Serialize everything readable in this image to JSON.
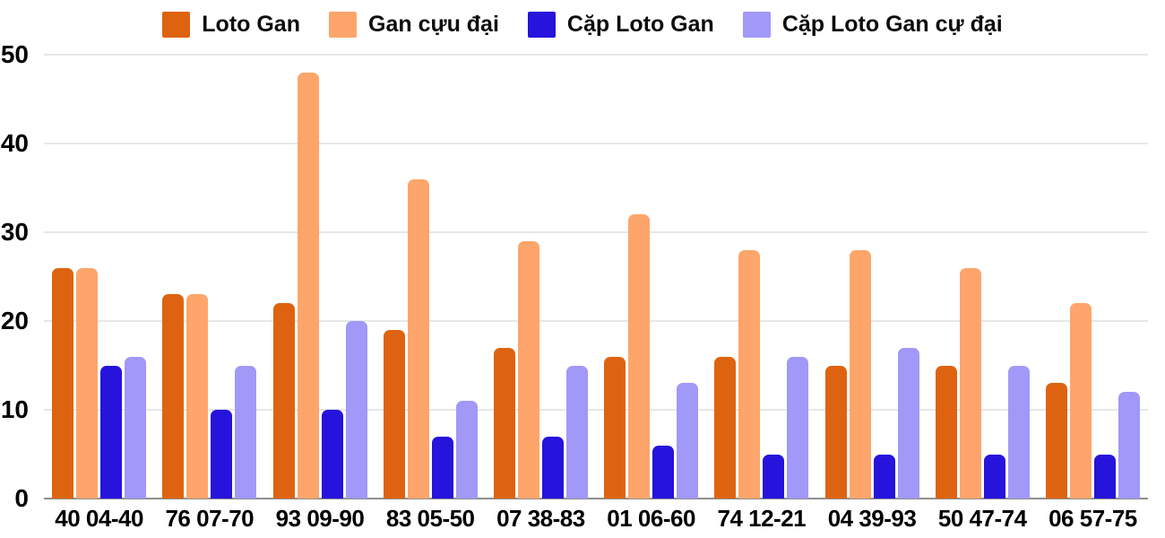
{
  "chart_data": {
    "type": "bar",
    "title": "",
    "xlabel": "",
    "ylabel": "",
    "categories": [
      "40 04-40",
      "76 07-70",
      "93 09-90",
      "83 05-50",
      "07 38-83",
      "01 06-60",
      "74 12-21",
      "04 39-93",
      "50 47-74",
      "06 57-75"
    ],
    "series": [
      {
        "name": "Loto Gan",
        "color": "#de6310",
        "values": [
          26,
          23,
          22,
          19,
          17,
          16,
          16,
          15,
          15,
          13
        ]
      },
      {
        "name": "Gan cựu đại",
        "color": "#fda56a",
        "values": [
          26,
          23,
          48,
          36,
          29,
          32,
          28,
          28,
          26,
          22
        ]
      },
      {
        "name": "Cặp Loto Gan",
        "color": "#2613dc",
        "values": [
          15,
          10,
          10,
          7,
          7,
          6,
          5,
          5,
          5,
          5
        ]
      },
      {
        "name": "Cặp Loto Gan cự đại",
        "color": "#a198f8",
        "values": [
          16,
          15,
          20,
          11,
          15,
          13,
          16,
          17,
          15,
          12
        ]
      }
    ],
    "ylim": [
      0,
      50
    ],
    "yticks": [
      0,
      10,
      20,
      30,
      40,
      50
    ],
    "grid": true,
    "legend_position": "top",
    "colors": {
      "gridline": "#e7e7e7",
      "axis_line": "#8f8f8f",
      "text": "#000000",
      "background": "#ffffff"
    }
  }
}
